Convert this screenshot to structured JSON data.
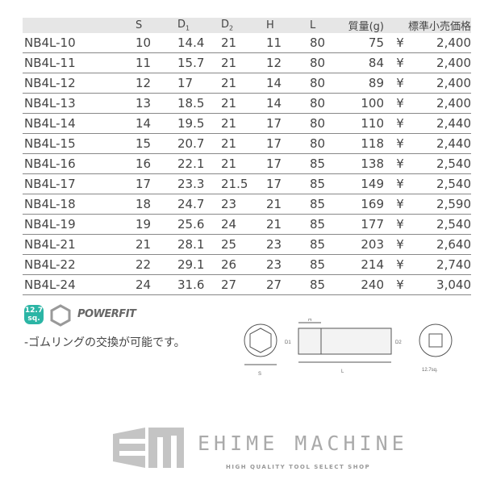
{
  "table": {
    "headers": [
      "",
      "S",
      "D1",
      "D2",
      "H",
      "L",
      "質量(g)",
      "標準小売価格"
    ],
    "rows": [
      [
        "NB4L-10",
        "10",
        "14.4",
        "21",
        "11",
        "80",
        "75",
        "¥",
        "2,400"
      ],
      [
        "NB4L-11",
        "11",
        "15.7",
        "21",
        "12",
        "80",
        "84",
        "¥",
        "2,400"
      ],
      [
        "NB4L-12",
        "12",
        "17",
        "21",
        "14",
        "80",
        "89",
        "¥",
        "2,400"
      ],
      [
        "NB4L-13",
        "13",
        "18.5",
        "21",
        "14",
        "80",
        "100",
        "¥",
        "2,400"
      ],
      [
        "NB4L-14",
        "14",
        "19.5",
        "21",
        "17",
        "80",
        "110",
        "¥",
        "2,440"
      ],
      [
        "NB4L-15",
        "15",
        "20.7",
        "21",
        "17",
        "80",
        "118",
        "¥",
        "2,440"
      ],
      [
        "NB4L-16",
        "16",
        "22.1",
        "21",
        "17",
        "85",
        "138",
        "¥",
        "2,540"
      ],
      [
        "NB4L-17",
        "17",
        "23.3",
        "21.5",
        "17",
        "85",
        "149",
        "¥",
        "2,540"
      ],
      [
        "NB4L-18",
        "18",
        "24.7",
        "23",
        "21",
        "85",
        "169",
        "¥",
        "2,590"
      ],
      [
        "NB4L-19",
        "19",
        "25.6",
        "24",
        "21",
        "85",
        "177",
        "¥",
        "2,540"
      ],
      [
        "NB4L-21",
        "21",
        "28.1",
        "25",
        "23",
        "85",
        "203",
        "¥",
        "2,640"
      ],
      [
        "NB4L-22",
        "22",
        "29.1",
        "26",
        "23",
        "85",
        "214",
        "¥",
        "2,740"
      ],
      [
        "NB4L-24",
        "24",
        "31.6",
        "27",
        "27",
        "85",
        "240",
        "¥",
        "3,040"
      ]
    ]
  },
  "badge": {
    "line1": "12.7",
    "line2": "sq."
  },
  "powerfit": "POWERFIT",
  "note": "-ゴムリングの交換が可能です。",
  "diagram": {
    "s": "S",
    "d1": "D1",
    "d2": "D2",
    "h": "H",
    "l": "L",
    "sq": "12.7sq."
  },
  "brand": {
    "name": "EHIME MACHINE",
    "tagline": "HIGH QUALITY TOOL SELECT SHOP",
    "logo_text": "EM"
  },
  "colors": {
    "badge": "#2bb5a5",
    "header_bg": "#e6e6e6"
  }
}
